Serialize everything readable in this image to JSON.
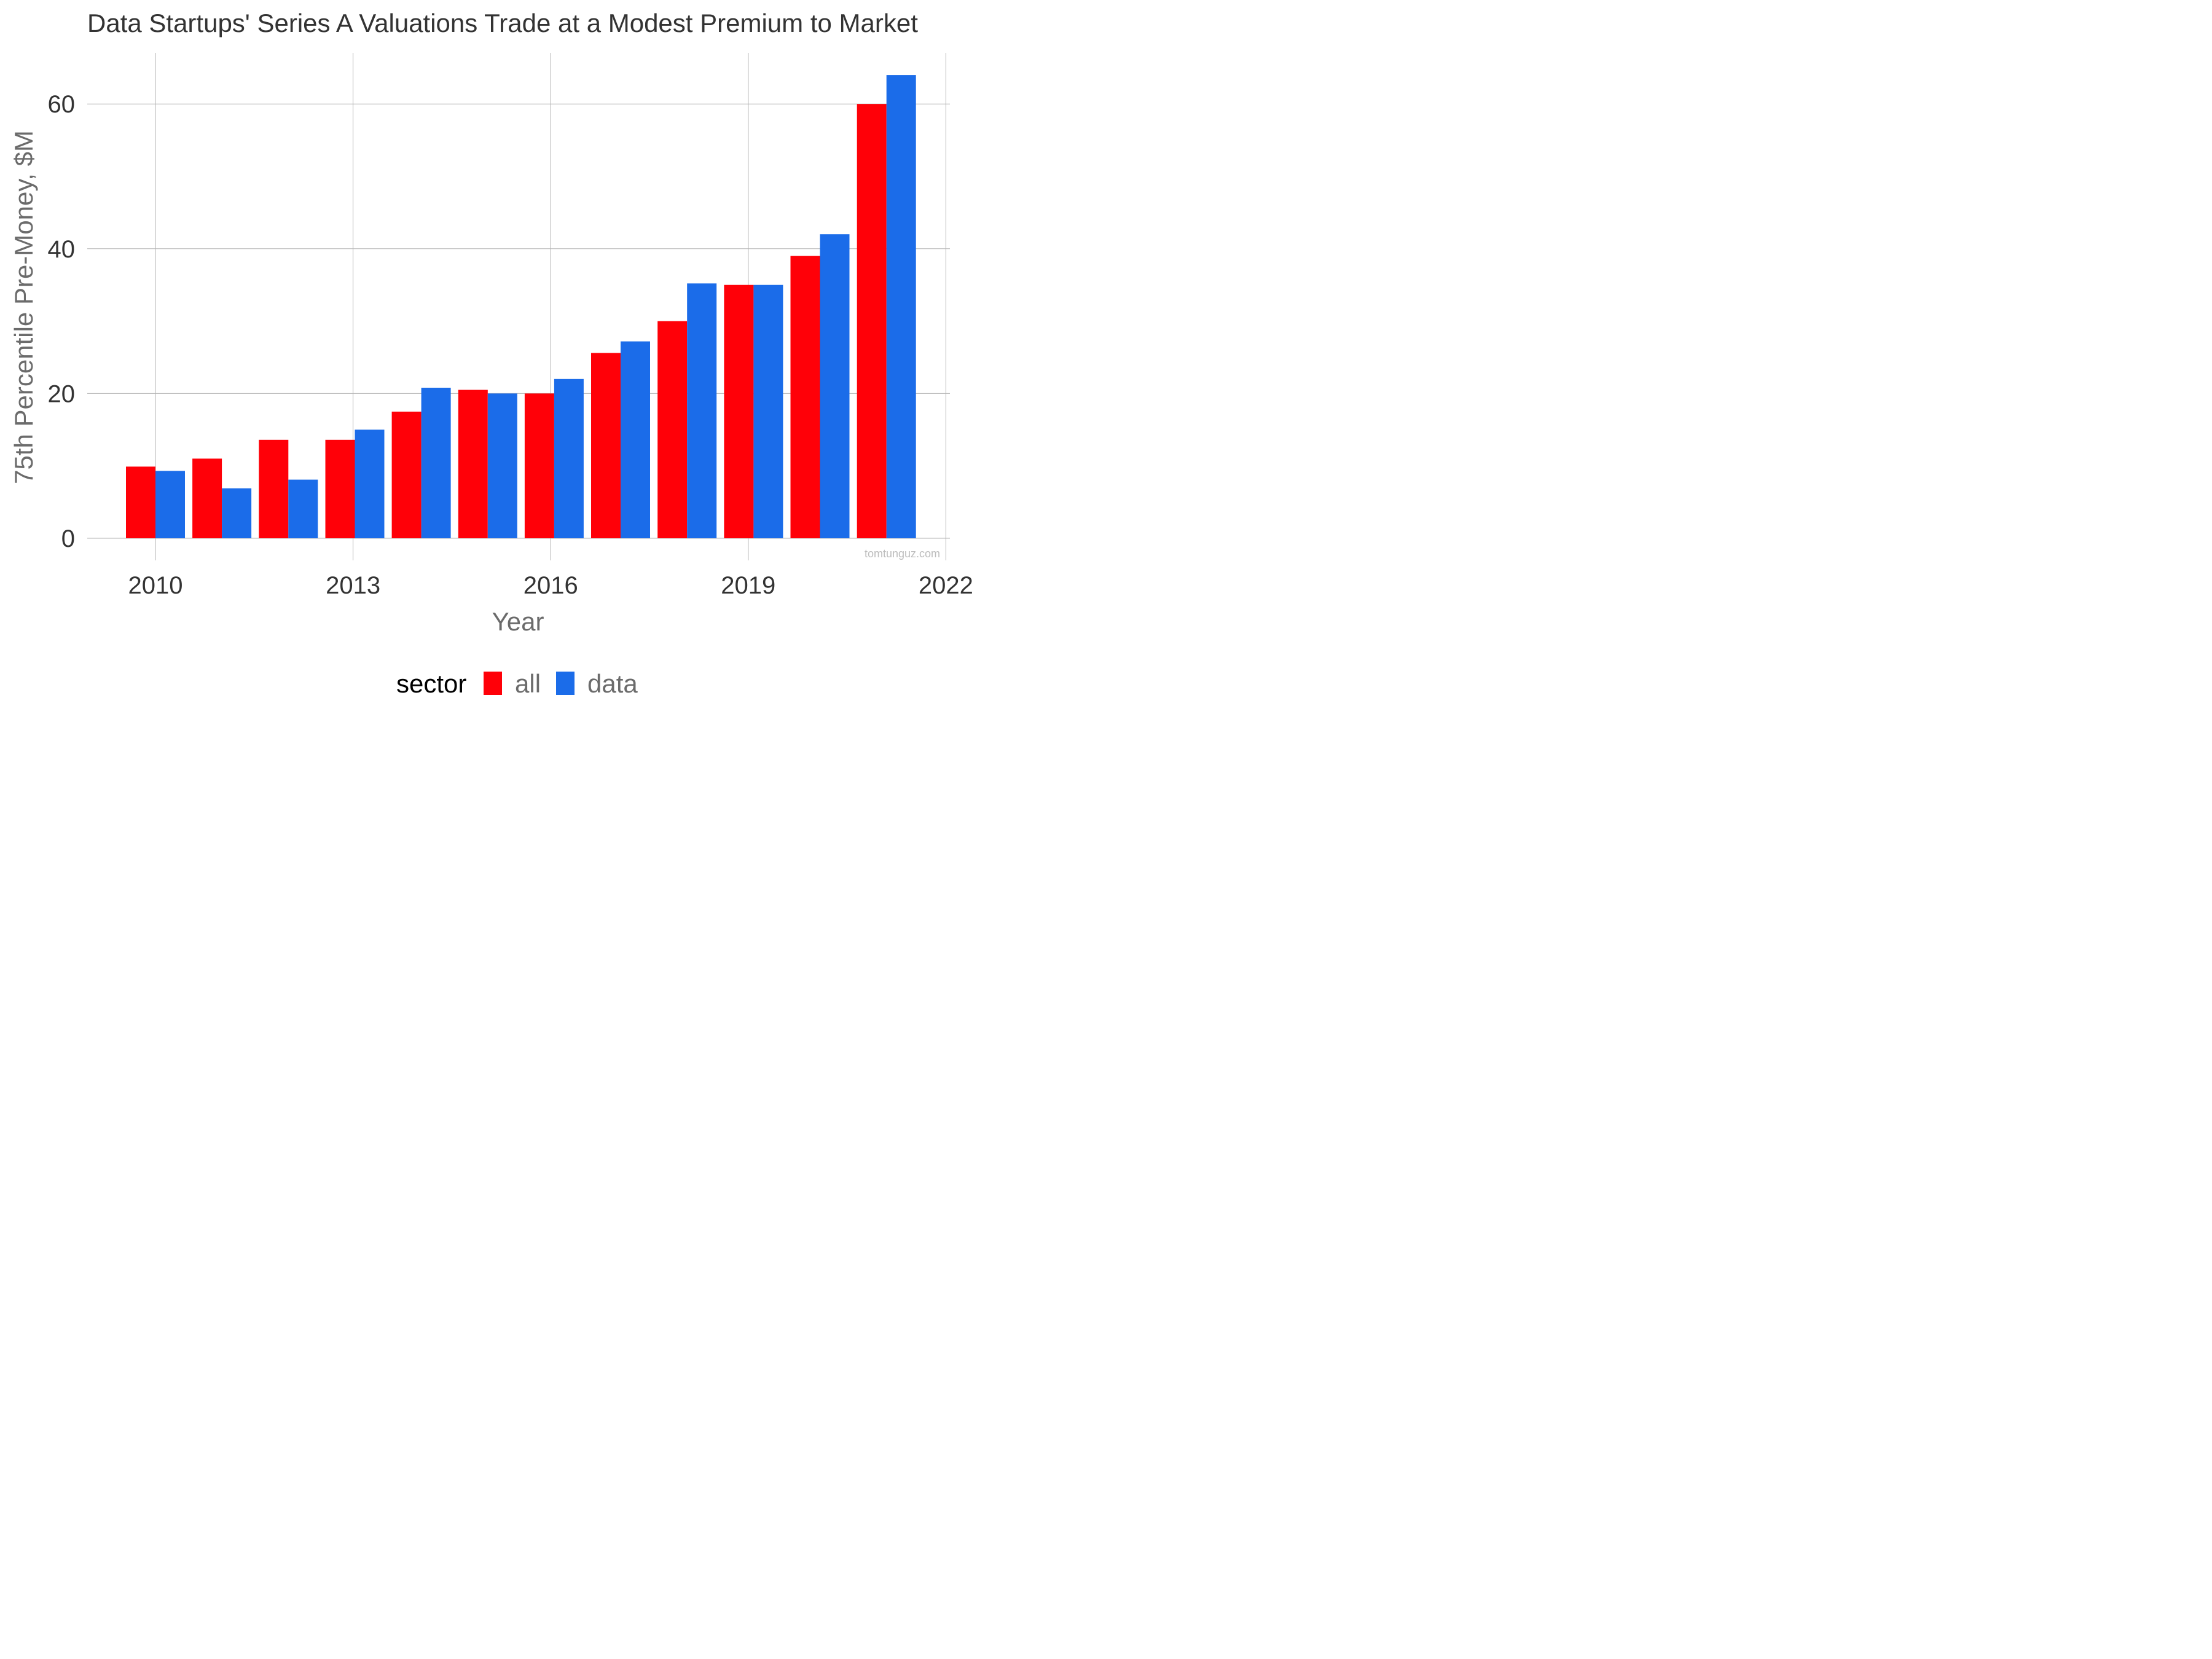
{
  "chart_data": {
    "type": "bar",
    "title": "Data Startups' Series A Valuations Trade at a Modest Premium to Market",
    "xlabel": "Year",
    "ylabel": "75th Percentile Pre-Money, $M",
    "x_ticks": [
      "2010",
      "2013",
      "2016",
      "2019",
      "2022"
    ],
    "y_ticks": [
      "0",
      "20",
      "40",
      "60"
    ],
    "xlim": [
      2009,
      2022
    ],
    "ylim": [
      0,
      67
    ],
    "categories": [
      2010,
      2011,
      2012,
      2013,
      2014,
      2015,
      2016,
      2017,
      2018,
      2019,
      2020,
      2021
    ],
    "series": [
      {
        "name": "all",
        "color": "#ff0008",
        "values": [
          9.9,
          11.0,
          13.6,
          13.6,
          17.5,
          20.5,
          20.0,
          25.6,
          30.0,
          35.0,
          39.0,
          60.0
        ]
      },
      {
        "name": "data",
        "color": "#1b6ce9",
        "values": [
          9.3,
          6.9,
          8.1,
          15.0,
          20.8,
          20.0,
          22.0,
          27.2,
          35.2,
          35.0,
          42.0,
          64.0
        ]
      }
    ],
    "legend": {
      "title": "sector",
      "position": "bottom"
    },
    "grid": true,
    "watermark": "tomtunguz.com"
  }
}
